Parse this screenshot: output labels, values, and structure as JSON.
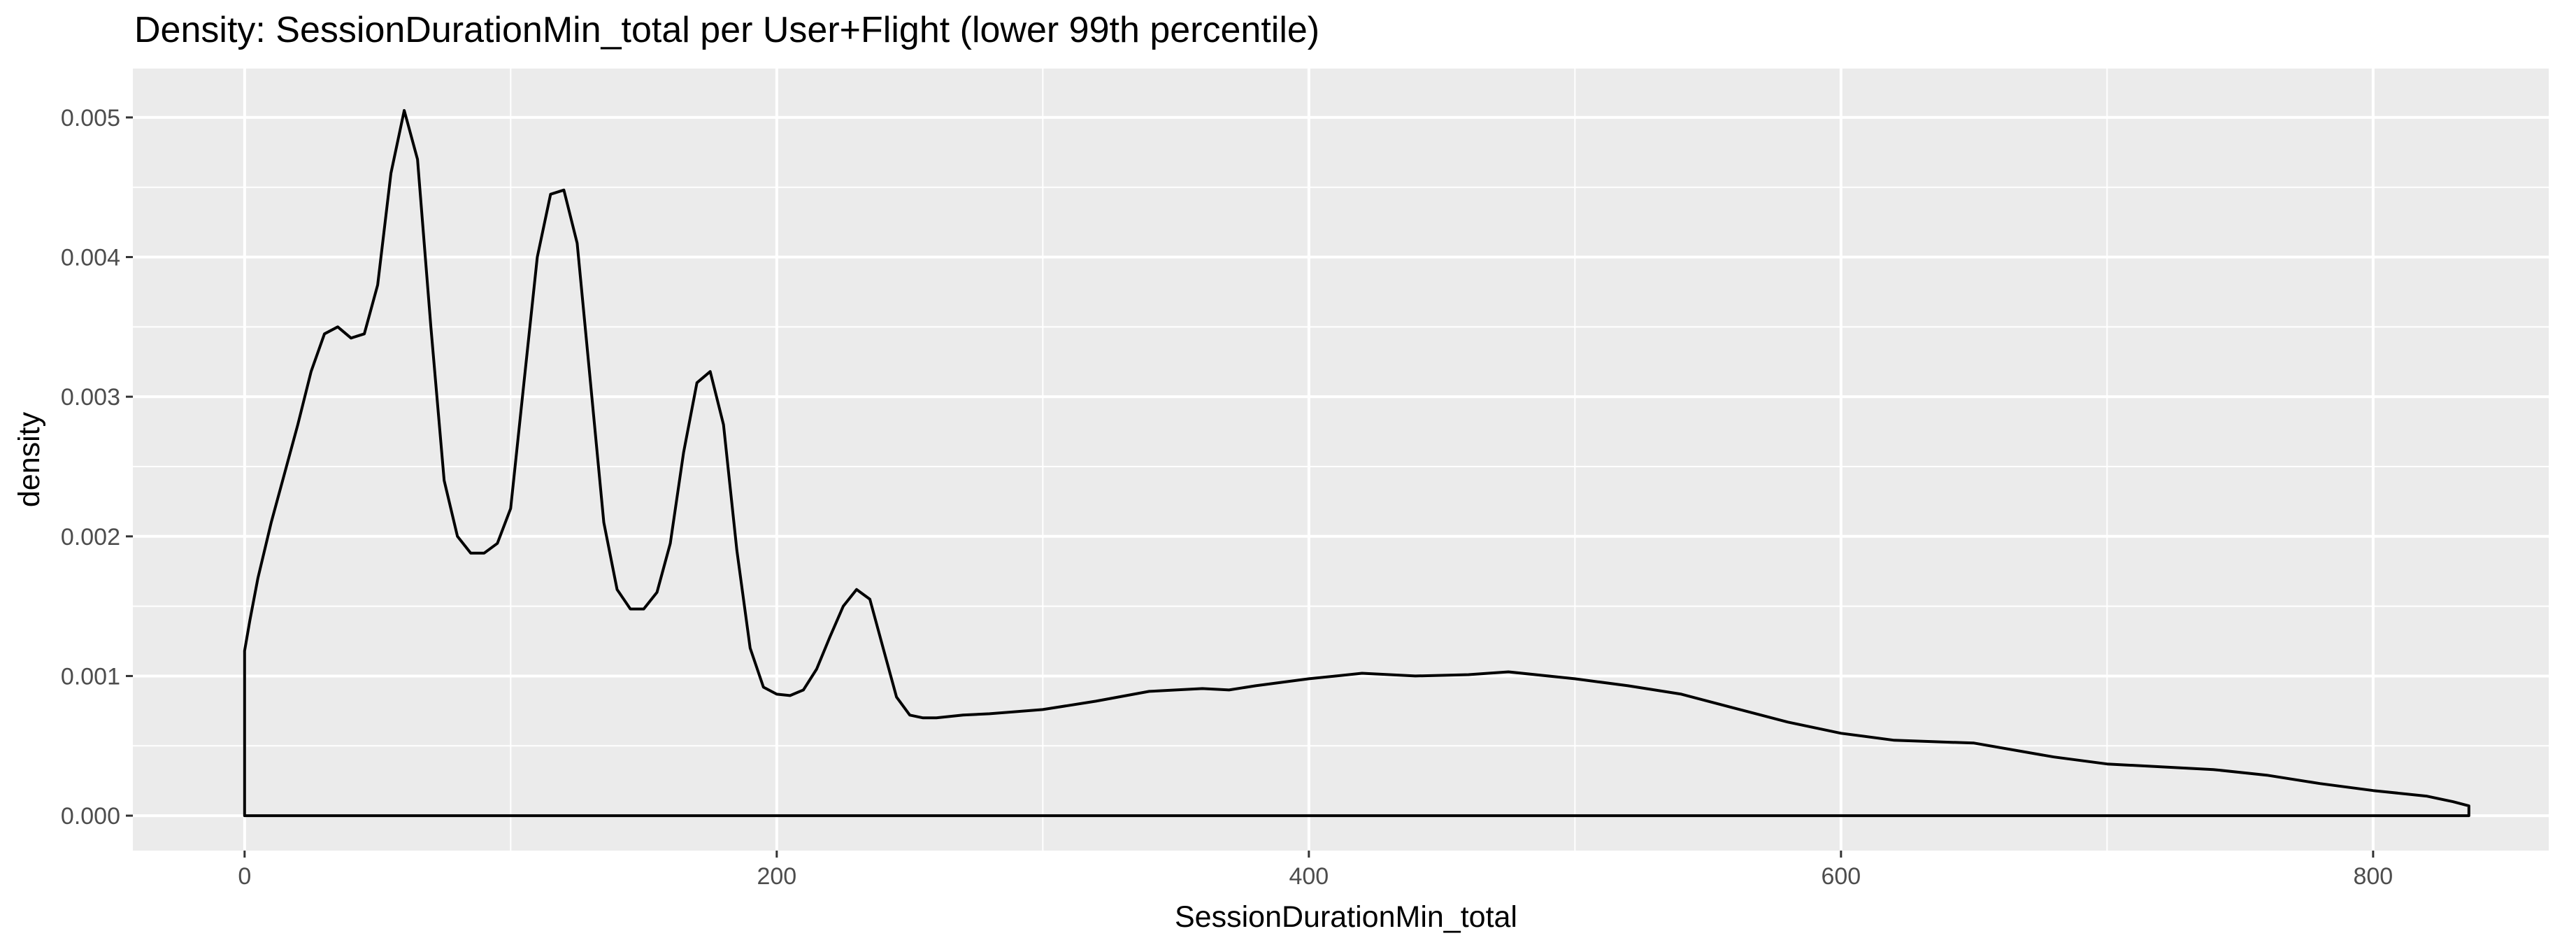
{
  "chart_data": {
    "type": "line",
    "title": "Density: SessionDurationMin_total per User+Flight (lower 99th percentile)",
    "xlabel": "SessionDurationMin_total",
    "ylabel": "density",
    "xlim": [
      -42,
      866
    ],
    "ylim": [
      -0.00025,
      0.00535
    ],
    "x_ticks": [
      0,
      200,
      400,
      600,
      800
    ],
    "x_tick_labels": [
      "0",
      "200",
      "400",
      "600",
      "800"
    ],
    "x_minor_ticks": [
      100,
      300,
      500,
      700
    ],
    "y_ticks": [
      0,
      0.001,
      0.002,
      0.003,
      0.004,
      0.005
    ],
    "y_tick_labels": [
      "0.000",
      "0.001",
      "0.002",
      "0.003",
      "0.004",
      "0.005"
    ],
    "y_minor_ticks": [
      0.0005,
      0.0015,
      0.0025,
      0.0035,
      0.0045
    ],
    "grid": true,
    "panel_background": "#ebebeb",
    "grid_color": "#ffffff",
    "line_color": "#000000",
    "series": [
      {
        "name": "density",
        "x": [
          0,
          2,
          5,
          10,
          15,
          20,
          25,
          30,
          35,
          40,
          45,
          50,
          55,
          60,
          65,
          70,
          75,
          80,
          85,
          90,
          95,
          100,
          105,
          110,
          115,
          120,
          125,
          130,
          135,
          140,
          145,
          150,
          155,
          160,
          165,
          170,
          175,
          180,
          185,
          190,
          195,
          200,
          205,
          210,
          215,
          220,
          225,
          230,
          235,
          240,
          245,
          250,
          255,
          260,
          265,
          270,
          280,
          300,
          320,
          340,
          350,
          360,
          370,
          380,
          400,
          420,
          440,
          460,
          475,
          500,
          520,
          540,
          560,
          580,
          600,
          620,
          650,
          680,
          700,
          740,
          760,
          780,
          800,
          820,
          830,
          836,
          836
        ],
        "y": [
          0.00118,
          0.0014,
          0.0017,
          0.0021,
          0.00245,
          0.0028,
          0.00318,
          0.00345,
          0.0035,
          0.00342,
          0.00345,
          0.0038,
          0.0046,
          0.00505,
          0.0047,
          0.0035,
          0.0024,
          0.002,
          0.00188,
          0.00188,
          0.00195,
          0.0022,
          0.0031,
          0.004,
          0.00445,
          0.00448,
          0.0041,
          0.0031,
          0.0021,
          0.00162,
          0.00148,
          0.00148,
          0.0016,
          0.00195,
          0.0026,
          0.0031,
          0.00318,
          0.0028,
          0.0019,
          0.0012,
          0.00092,
          0.00087,
          0.00086,
          0.0009,
          0.00105,
          0.00128,
          0.0015,
          0.00162,
          0.00155,
          0.0012,
          0.00085,
          0.00072,
          0.0007,
          0.0007,
          0.00071,
          0.00072,
          0.00073,
          0.00076,
          0.00082,
          0.00089,
          0.0009,
          0.00091,
          0.0009,
          0.00093,
          0.00098,
          0.00102,
          0.001,
          0.00101,
          0.00103,
          0.00098,
          0.00093,
          0.00087,
          0.00077,
          0.00067,
          0.00059,
          0.00054,
          0.00052,
          0.00042,
          0.00037,
          0.00033,
          0.00029,
          0.00023,
          0.00018,
          0.00014,
          0.0001,
          7e-05,
          0
        ]
      }
    ]
  }
}
